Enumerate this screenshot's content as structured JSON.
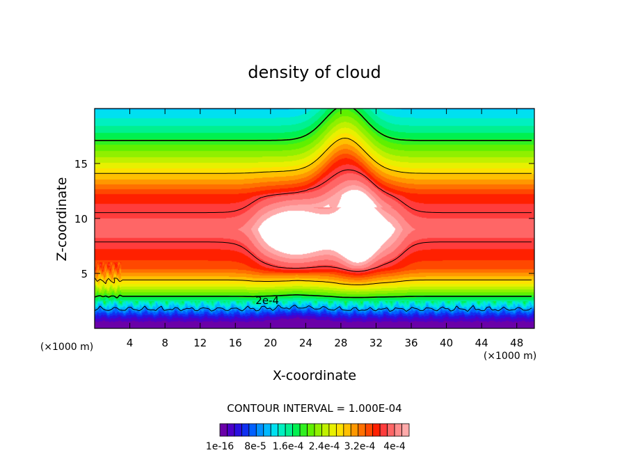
{
  "chart_data": {
    "type": "heatmap",
    "title": "density of cloud",
    "xlabel": "X-coordinate",
    "ylabel": "Z-coordinate",
    "x_unit": "(×1000 m)",
    "y_unit": "(×1000 m)",
    "xlim": [
      0,
      50
    ],
    "ylim": [
      0,
      20
    ],
    "x_ticks": [
      4,
      8,
      12,
      16,
      20,
      24,
      28,
      32,
      36,
      40,
      44,
      48
    ],
    "y_ticks": [
      5,
      10,
      15
    ],
    "contour_interval_text": "CONTOUR INTERVAL = 1.000E-04",
    "contour_label": "2e-4",
    "colorbar": {
      "min": 0,
      "max": 0.00046,
      "tick_labels": [
        "1e-16",
        "8e-5",
        "1.6e-4",
        "2.4e-4",
        "3.2e-4",
        "4e-4"
      ],
      "colors": [
        "#6a00a8",
        "#4b00c8",
        "#2a10e0",
        "#1030f0",
        "#0060ff",
        "#0090ff",
        "#00b8ff",
        "#00e0f0",
        "#00f0c0",
        "#00f090",
        "#00f050",
        "#30f020",
        "#60f000",
        "#90f000",
        "#c0f000",
        "#e8f000",
        "#ffe000",
        "#ffc000",
        "#ff9800",
        "#ff7000",
        "#ff4800",
        "#ff2000",
        "#ff3c3c",
        "#ff6666",
        "#ff8c8c",
        "#ffaaaa"
      ]
    },
    "field_description": {
      "base_layers": [
        {
          "z": 0.5,
          "value": 1e-05
        },
        {
          "z": 1.0,
          "value": 4e-05
        },
        {
          "z": 1.6,
          "value": 9e-05
        },
        {
          "z": 2.3,
          "value": 0.00015
        },
        {
          "z": 3.0,
          "value": 0.00021
        },
        {
          "z": 4.0,
          "value": 0.00028
        },
        {
          "z": 5.5,
          "value": 0.00036
        },
        {
          "z": 9.0,
          "value": 0.00042
        },
        {
          "z": 12.0,
          "value": 0.00038
        },
        {
          "z": 13.5,
          "value": 0.00032
        },
        {
          "z": 15.5,
          "value": 0.00025
        },
        {
          "z": 18.0,
          "value": 0.00017
        },
        {
          "z": 20.0,
          "value": 0.00012
        }
      ],
      "cloud_core_x": 30,
      "cloud_core_z": 9,
      "core_peak": 0.00049
    }
  }
}
